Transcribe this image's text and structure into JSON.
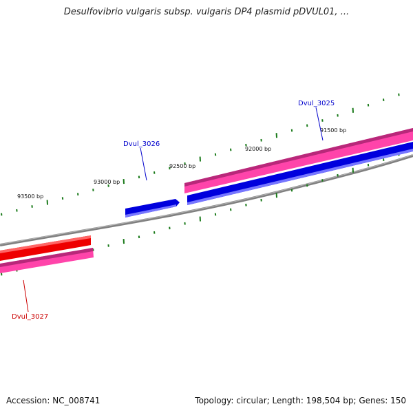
{
  "title": "Desulfovibrio vulgaris subsp. vulgaris DP4 plasmid pDVUL01, ...",
  "accession": "Accession: NC_008741",
  "summary": "Topology: circular; Length: 198,504 bp; Genes: 150",
  "colors": {
    "backbone": "#808080",
    "tick": "#1a7a1a",
    "forward_gene": "#0000dd",
    "reverse_gene": "#ee0000",
    "forward_rna": "#ff44aa",
    "label_forward": "#0000cc",
    "label_reverse": "#cc0000"
  },
  "scale_labels": [
    "93500 bp",
    "93000 bp",
    "92500 bp",
    "92000 bp",
    "91500 bp"
  ],
  "genes": [
    {
      "id": "Dvul_3025",
      "strand": "forward"
    },
    {
      "id": "Dvul_3026",
      "strand": "forward"
    },
    {
      "id": "Dvul_3027",
      "strand": "reverse"
    }
  ]
}
